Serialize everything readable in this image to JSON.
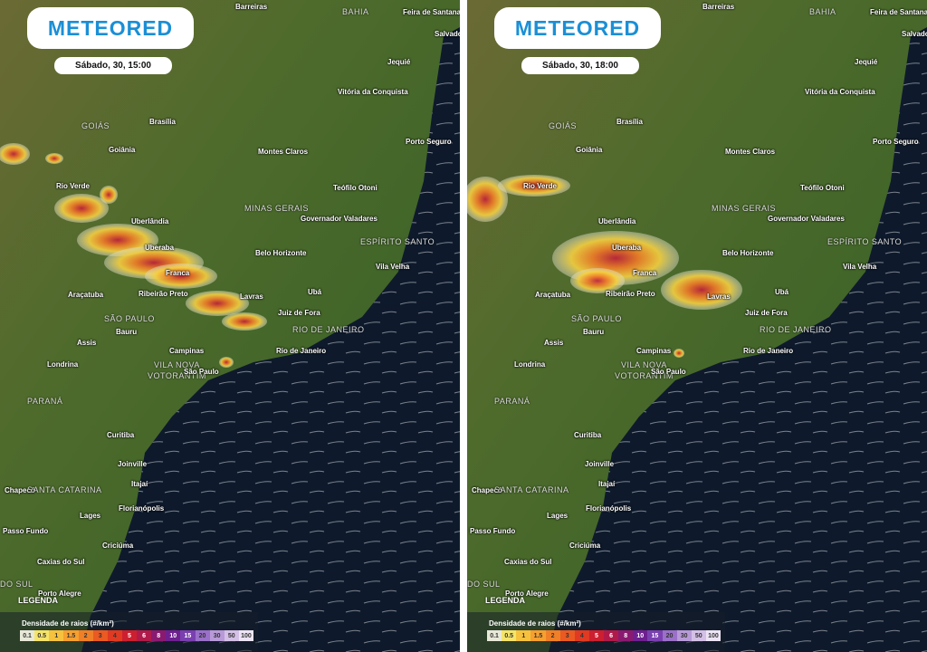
{
  "panels": [
    {
      "logo": "METEORED",
      "time": "Sábado, 30, 15:00",
      "places": [
        "Barreiras",
        "BAHIA",
        "Feira de Santana",
        "Salvador",
        "Jequié",
        "Vitória da Conquista",
        "GOIÁS",
        "Brasília",
        "Goiânia",
        "Montes Claros",
        "Porto Seguro",
        "Rio Verde",
        "Teófilo Otoni",
        "MINAS GERAIS",
        "Uberlândia",
        "Governador Valadares",
        "ESPÍRITO SANTO",
        "Uberaba",
        "Belo Horizonte",
        "Franca",
        "Vila Velha",
        "Araçatuba",
        "Ribeirão Preto",
        "Lavras",
        "Ubá",
        "SÃO PAULO",
        "Juiz de Fora",
        "RIO DE JANEIRO",
        "Bauru",
        "Assis",
        "Campinas",
        "Rio de Janeiro",
        "VILA NOVA",
        "VOTORANTIM",
        "São Paulo",
        "Londrina",
        "PARANÁ",
        "Curitiba",
        "Joinville",
        "Itajaí",
        "Chapecó",
        "SANTA CATARINA",
        "Lages",
        "Florianópolis",
        "Passo Fundo",
        "Criciúma",
        "Caxias do Sul",
        "DO SUL",
        "Porto Alegre"
      ],
      "legend": {
        "heading": "LEGENDA",
        "title": "Densidade de raios (#/km²)",
        "ticks": [
          "0.1",
          "0.5",
          "1",
          "1.5",
          "2",
          "3",
          "4",
          "5",
          "6",
          "8",
          "10",
          "15",
          "20",
          "30",
          "50",
          "100"
        ]
      }
    },
    {
      "logo": "METEORED",
      "time": "Sábado, 30, 18:00",
      "places": [
        "Barreiras",
        "BAHIA",
        "Feira de Santana",
        "Salvador",
        "Jequié",
        "Vitória da Conquista",
        "GOIÁS",
        "Brasília",
        "Goiânia",
        "Montes Claros",
        "Porto Seguro",
        "Rio Verde",
        "Teófilo Otoni",
        "MINAS GERAIS",
        "Uberlândia",
        "Governador Valadares",
        "ESPÍRITO SANTO",
        "Uberaba",
        "Belo Horizonte",
        "Franca",
        "Vila Velha",
        "Araçatuba",
        "Ribeirão Preto",
        "Lavras",
        "Ubá",
        "SÃO PAULO",
        "Juiz de Fora",
        "RIO DE JANEIRO",
        "Bauru",
        "Assis",
        "Campinas",
        "Rio de Janeiro",
        "VILA NOVA",
        "VOTORANTIM",
        "São Paulo",
        "Londrina",
        "PARANÁ",
        "Curitiba",
        "Joinville",
        "Itajaí",
        "Chapecó",
        "SANTA CATARINA",
        "Lages",
        "Florianópolis",
        "Passo Fundo",
        "Criciúma",
        "Caxias do Sul",
        "DO SUL",
        "Porto Alegre"
      ],
      "legend": {
        "heading": "LEGENDA",
        "title": "Densidade de raios (#/km²)",
        "ticks": [
          "0.1",
          "0.5",
          "1",
          "1.5",
          "2",
          "3",
          "4",
          "5",
          "6",
          "8",
          "10",
          "15",
          "20",
          "30",
          "50",
          "100"
        ]
      }
    }
  ]
}
